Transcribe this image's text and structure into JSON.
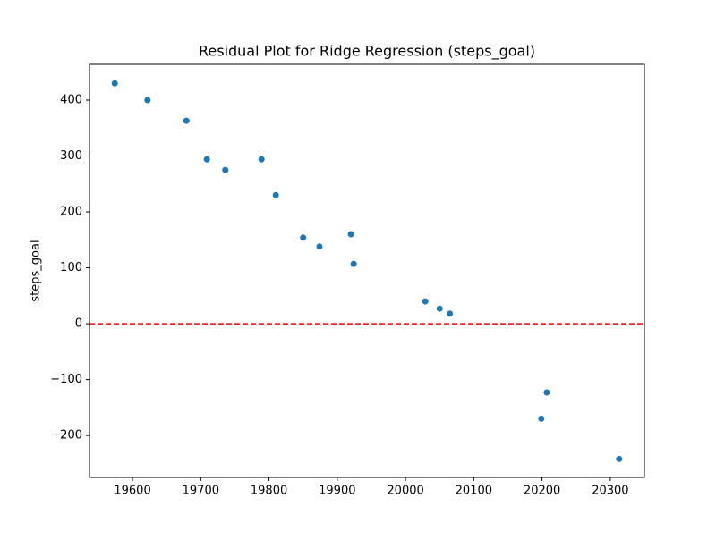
{
  "chart_data": {
    "type": "scatter",
    "title": "Residual Plot for Ridge Regression (steps_goal)",
    "y_label": "steps_goal",
    "series": [
      {
        "color": "#1f77b4",
        "x": [
          19574,
          19622,
          19679,
          19709,
          19736,
          19789,
          19810,
          19850,
          19874,
          19920,
          19924,
          20029,
          20050,
          20065,
          20199,
          20207,
          20313
        ],
        "values": [
          430,
          400,
          363,
          294,
          275,
          294,
          230,
          154,
          138,
          160,
          107,
          40,
          27,
          18,
          -170,
          -123,
          -242
        ]
      }
    ],
    "xlim": [
      19537,
      20350
    ],
    "xticks": [
      19600,
      19700,
      19800,
      19900,
      20000,
      20100,
      20200,
      20300
    ],
    "ylim": [
      -275,
      464
    ],
    "yticks": [
      {
        "value": -200,
        "label": "−200"
      },
      {
        "value": -100,
        "label": "−100"
      },
      0,
      100,
      200,
      300,
      400
    ],
    "reference_line": 0,
    "reference_line_color": "#ff0000"
  }
}
